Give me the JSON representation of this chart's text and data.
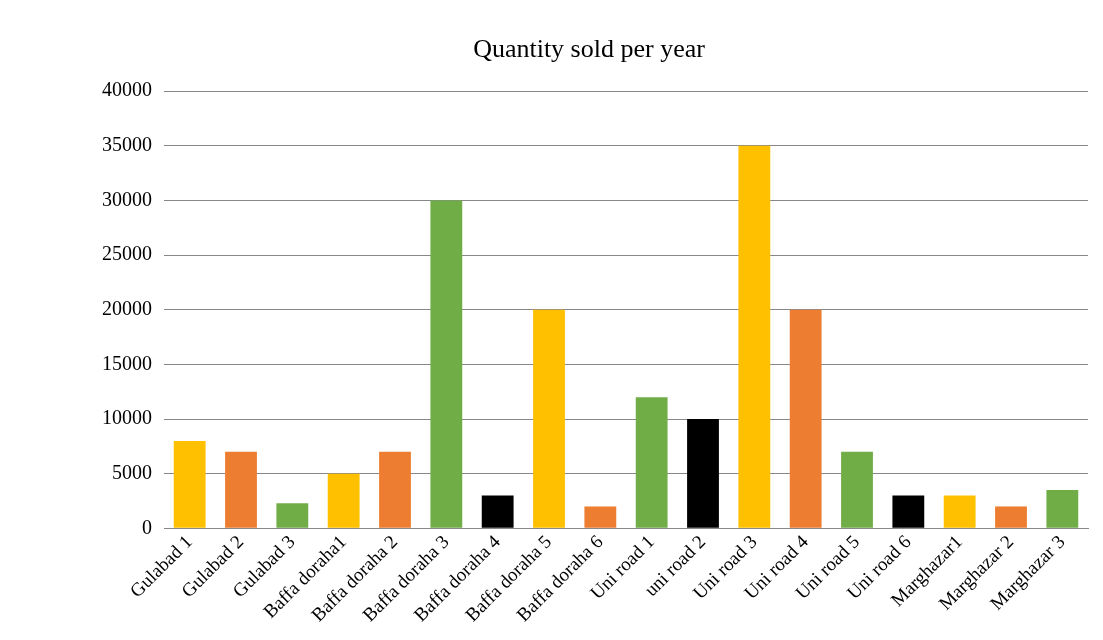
{
  "chart_data": {
    "type": "bar",
    "title": "Quantity sold per year",
    "categories": [
      "Gulabad 1",
      "Gulabad 2",
      "Gulabad 3",
      "Baffa doraha1",
      "Baffa doraha 2",
      "Baffa doraha 3",
      "Baffa doraha 4",
      "Baffa doraha 5",
      "Baffa doraha 6",
      "Uni road 1",
      "uni road 2",
      "Uni road 3",
      "Uni road 4",
      "Uni road 5",
      "Uni road 6",
      "Marghazar1",
      "Marghazar 2",
      "Marghazar 3"
    ],
    "values": [
      8000,
      7000,
      2300,
      5000,
      7000,
      30000,
      3000,
      20000,
      2000,
      12000,
      10000,
      35000,
      20000,
      7000,
      3000,
      3000,
      2000,
      3500
    ],
    "colors": [
      "#ffc000",
      "#ed7d31",
      "#70ad47",
      "#ffc000",
      "#ed7d31",
      "#70ad47",
      "#000000",
      "#ffc000",
      "#ed7d31",
      "#70ad47",
      "#000000",
      "#ffc000",
      "#ed7d31",
      "#70ad47",
      "#000000",
      "#ffc000",
      "#ed7d31",
      "#70ad47"
    ],
    "ylim": [
      0,
      40000
    ],
    "yticks": [
      0,
      5000,
      10000,
      15000,
      20000,
      25000,
      30000,
      35000,
      40000
    ],
    "grid": "y",
    "legend": false
  }
}
